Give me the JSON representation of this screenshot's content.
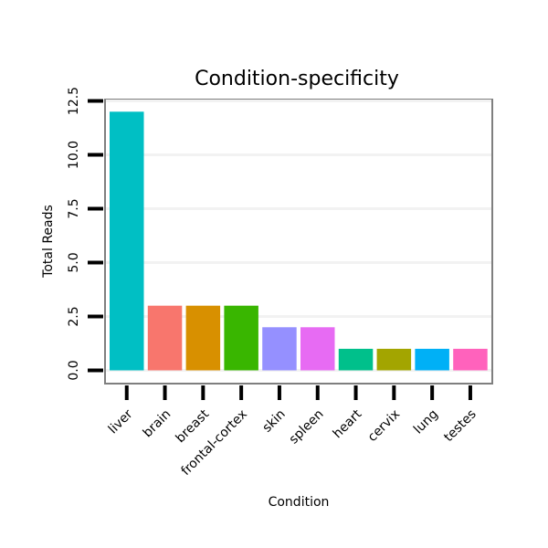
{
  "chart_data": {
    "type": "bar",
    "title": "Condition-specificity",
    "xlabel": "Condition",
    "ylabel": "Total Reads",
    "categories": [
      "liver",
      "brain",
      "breast",
      "frontal-cortex",
      "skin",
      "spleen",
      "heart",
      "cervix",
      "lung",
      "testes"
    ],
    "values": [
      12,
      3,
      3,
      3,
      2,
      2,
      1,
      1,
      1,
      1
    ],
    "colors": [
      "#00BFC4",
      "#F8766D",
      "#D89000",
      "#39B600",
      "#9590FF",
      "#E76BF3",
      "#00C08B",
      "#A3A500",
      "#00B0F6",
      "#FF62BC"
    ],
    "yticks": [
      0.0,
      2.5,
      5.0,
      7.5,
      10.0,
      12.5
    ],
    "ytick_labels": [
      "0.0",
      "2.5",
      "5.0",
      "7.5",
      "10.0",
      "12.5"
    ],
    "ylim": [
      0,
      12.5
    ],
    "grid": true,
    "legend": "none"
  }
}
